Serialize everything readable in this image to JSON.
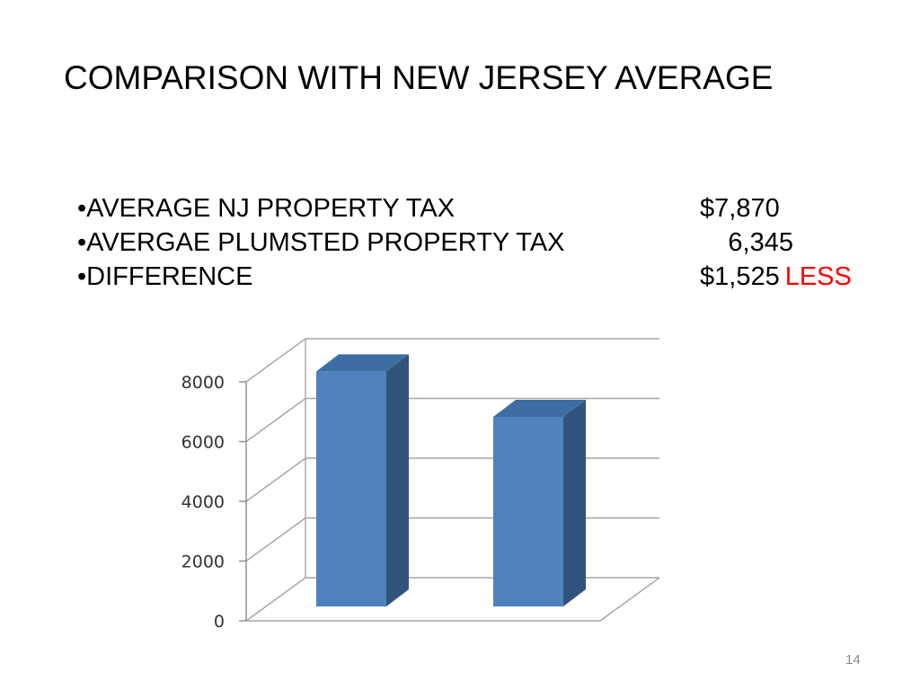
{
  "slide": {
    "title": "COMPARISON WITH NEW JERSEY AVERAGE",
    "page_number": "14"
  },
  "bullets": [
    {
      "label": "•AVERAGE NJ PROPERTY TAX",
      "value": "$7,870",
      "suffix": ""
    },
    {
      "label": "•AVERGAE PLUMSTED PROPERTY TAX",
      "value": "6,345",
      "suffix": ""
    },
    {
      "label": "•DIFFERENCE",
      "value": "$1,525",
      "suffix": "LESS"
    }
  ],
  "colors": {
    "bar_front": "#4f81bd",
    "bar_side": "#31547c",
    "bar_top": "#3e6da3",
    "less_text": "#ff0000",
    "gridline": "#a6a6a6"
  },
  "chart_data": {
    "type": "bar",
    "style": "3d-column",
    "categories": [
      "",
      ""
    ],
    "values": [
      7870,
      6345
    ],
    "ylim": [
      0,
      8000
    ],
    "yticks": [
      "0",
      "2000",
      "4000",
      "6000",
      "8000"
    ],
    "title": "",
    "xlabel": "",
    "ylabel": "",
    "grid": true,
    "legend": "none"
  }
}
